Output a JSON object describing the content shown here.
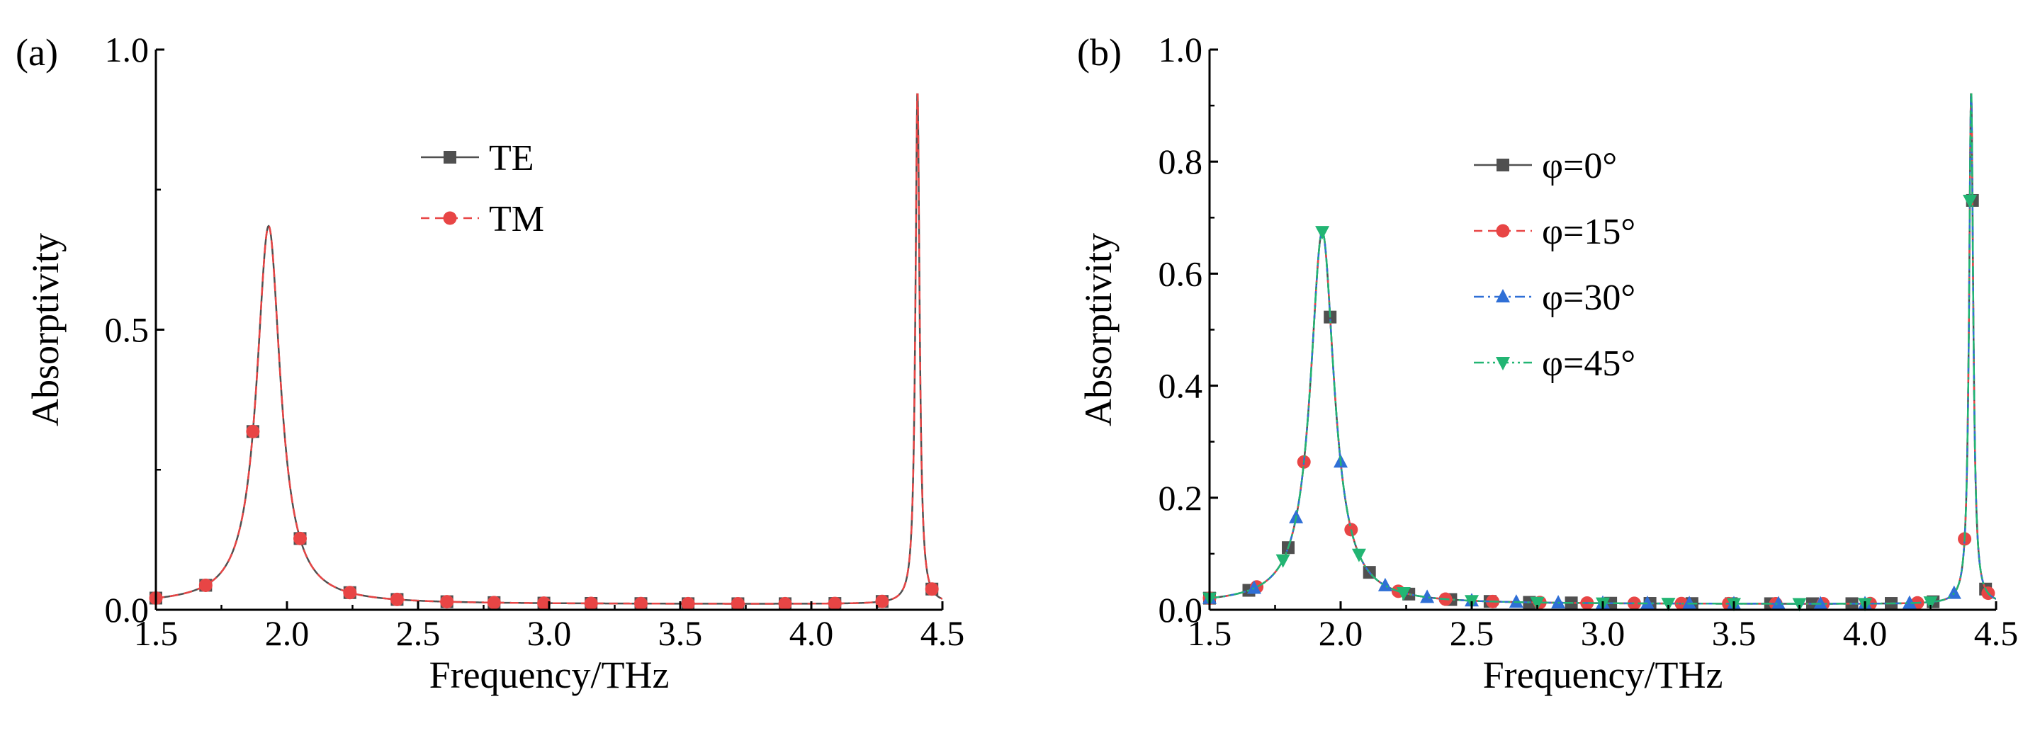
{
  "chart_data": [
    {
      "panel_label": "(a)",
      "type": "line",
      "title": "",
      "xlabel": "Frequency/THz",
      "ylabel": "Absorptivity",
      "xlim": [
        1.5,
        4.5
      ],
      "ylim": [
        0.0,
        1.0
      ],
      "xticks": [
        1.5,
        2.0,
        2.5,
        3.0,
        3.5,
        4.0,
        4.5
      ],
      "xtick_labels": [
        "1.5",
        "2.0",
        "2.5",
        "3.0",
        "3.5",
        "4.0",
        "4.5"
      ],
      "yticks": [
        0.0,
        0.5,
        1.0
      ],
      "ytick_labels": [
        "0.0",
        "0.5",
        "1.0"
      ],
      "legend_position": "upper-center",
      "series": [
        {
          "name": "TE",
          "color": "#505050",
          "line_style": "solid",
          "marker": "square",
          "peaks": [
            {
              "f0": 1.93,
              "amp": 0.675,
              "gamma": 0.055
            },
            {
              "f0": 4.405,
              "amp": 0.92,
              "gamma": 0.0095
            }
          ],
          "baseline": 0.01,
          "marker_x": [
            1.5,
            1.69,
            1.87,
            2.05,
            2.24,
            2.42,
            2.61,
            2.79,
            2.98,
            3.16,
            3.35,
            3.53,
            3.72,
            3.9,
            4.09,
            4.27,
            4.46
          ]
        },
        {
          "name": "TM",
          "color": "#e84545",
          "line_style": "dashed",
          "marker": "circle",
          "peaks": [
            {
              "f0": 1.93,
              "amp": 0.675,
              "gamma": 0.055
            },
            {
              "f0": 4.405,
              "amp": 0.92,
              "gamma": 0.0095
            }
          ],
          "baseline": 0.01,
          "marker_x": [
            1.5,
            1.69,
            1.87,
            2.05,
            2.24,
            2.42,
            2.61,
            2.79,
            2.98,
            3.16,
            3.35,
            3.53,
            3.72,
            3.9,
            4.09,
            4.27,
            4.46
          ]
        }
      ]
    },
    {
      "panel_label": "(b)",
      "type": "line",
      "title": "",
      "xlabel": "Frequency/THz",
      "ylabel": "Absorptivity",
      "xlim": [
        1.5,
        4.5
      ],
      "ylim": [
        0.0,
        1.0
      ],
      "xticks": [
        1.5,
        2.0,
        2.5,
        3.0,
        3.5,
        4.0,
        4.5
      ],
      "xtick_labels": [
        "1.5",
        "2.0",
        "2.5",
        "3.0",
        "3.5",
        "4.0",
        "4.5"
      ],
      "yticks": [
        0.0,
        0.2,
        0.4,
        0.6,
        0.8,
        1.0
      ],
      "ytick_labels": [
        "0.0",
        "0.2",
        "0.4",
        "0.6",
        "0.8",
        "1.0"
      ],
      "legend_position": "upper-center",
      "series": [
        {
          "name": "φ=0°",
          "color": "#505050",
          "line_style": "solid",
          "marker": "square",
          "peaks": [
            {
              "f0": 1.93,
              "amp": 0.665,
              "gamma": 0.055
            },
            {
              "f0": 4.405,
              "amp": 0.92,
              "gamma": 0.0095
            }
          ],
          "baseline": 0.01,
          "marker_x": [
            1.5,
            1.65,
            1.8,
            1.96,
            2.11,
            2.26,
            2.42,
            2.57,
            2.72,
            2.88,
            3.03,
            3.18,
            3.34,
            3.49,
            3.64,
            3.8,
            3.95,
            4.1,
            4.26,
            4.41,
            4.46
          ]
        },
        {
          "name": "φ=15°",
          "color": "#e84545",
          "line_style": "dashed",
          "marker": "circle",
          "peaks": [
            {
              "f0": 1.93,
              "amp": 0.665,
              "gamma": 0.055
            },
            {
              "f0": 4.405,
              "amp": 0.92,
              "gamma": 0.0095
            }
          ],
          "baseline": 0.01,
          "marker_x": [
            1.5,
            1.68,
            1.86,
            2.04,
            2.22,
            2.4,
            2.58,
            2.76,
            2.94,
            3.12,
            3.3,
            3.48,
            3.66,
            3.84,
            4.02,
            4.2,
            4.38,
            4.47
          ]
        },
        {
          "name": "φ=30°",
          "color": "#2f6fd6",
          "line_style": "dashdot",
          "marker": "triangle-up",
          "peaks": [
            {
              "f0": 1.93,
              "amp": 0.665,
              "gamma": 0.055
            },
            {
              "f0": 4.405,
              "amp": 0.92,
              "gamma": 0.0095
            }
          ],
          "baseline": 0.01,
          "marker_x": [
            1.5,
            1.67,
            1.83,
            2.0,
            2.17,
            2.33,
            2.5,
            2.67,
            2.83,
            3.0,
            3.17,
            3.33,
            3.5,
            3.67,
            3.83,
            4.0,
            4.17,
            4.34
          ]
        },
        {
          "name": "φ=45°",
          "color": "#22b573",
          "line_style": "dashdotdot",
          "marker": "triangle-down",
          "peaks": [
            {
              "f0": 1.93,
              "amp": 0.665,
              "gamma": 0.055
            },
            {
              "f0": 4.405,
              "amp": 0.92,
              "gamma": 0.0095
            }
          ],
          "baseline": 0.01,
          "marker_x": [
            1.5,
            1.78,
            1.93,
            2.07,
            2.24,
            2.5,
            2.75,
            3.0,
            3.25,
            3.5,
            3.75,
            4.0,
            4.25,
            4.4
          ]
        }
      ]
    }
  ]
}
